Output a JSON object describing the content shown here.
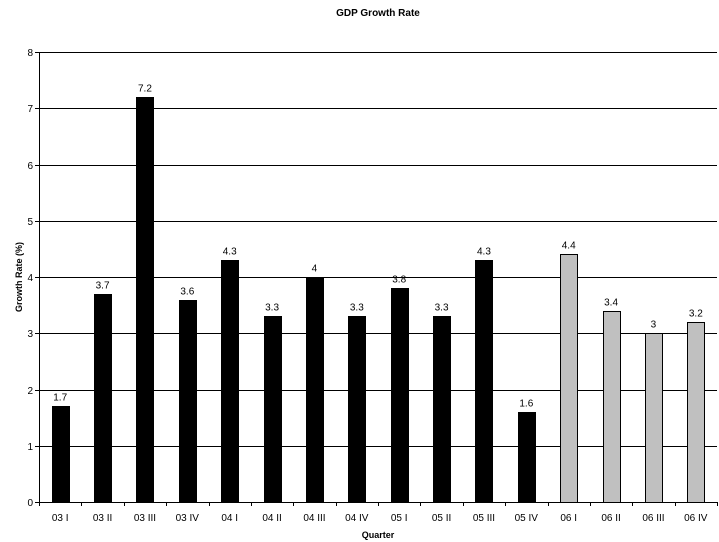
{
  "chart_data": {
    "type": "bar",
    "title": "GDP Growth Rate",
    "xlabel": "Quarter",
    "ylabel": "Growth Rate (%)",
    "ylim": [
      0,
      8
    ],
    "yticks": [
      "0",
      "1",
      "2",
      "3",
      "4",
      "5",
      "6",
      "7",
      "8"
    ],
    "grid": true,
    "categories": [
      "03 I",
      "03 II",
      "03 III",
      "03 IV",
      "04 I",
      "04 II",
      "04 III",
      "04 IV",
      "05 I",
      "05 II",
      "05 III",
      "05 IV",
      "06 I",
      "06 II",
      "06 III",
      "06 IV"
    ],
    "values": [
      1.7,
      3.7,
      7.2,
      3.6,
      4.3,
      3.3,
      4,
      3.3,
      3.8,
      3.3,
      4.3,
      1.6,
      4.4,
      3.4,
      3,
      3.2
    ],
    "data_labels": [
      "1.7",
      "3.7",
      "7.2",
      "3.6",
      "4.3",
      "3.3",
      "4",
      "3.3",
      "3.8",
      "3.3",
      "4.3",
      "1.6",
      "4.4",
      "3.4",
      "3",
      "3.2"
    ],
    "bar_colors": [
      "#000000",
      "#000000",
      "#000000",
      "#000000",
      "#000000",
      "#000000",
      "#000000",
      "#000000",
      "#000000",
      "#000000",
      "#000000",
      "#000000",
      "#c0c0c0",
      "#c0c0c0",
      "#c0c0c0",
      "#c0c0c0"
    ]
  }
}
